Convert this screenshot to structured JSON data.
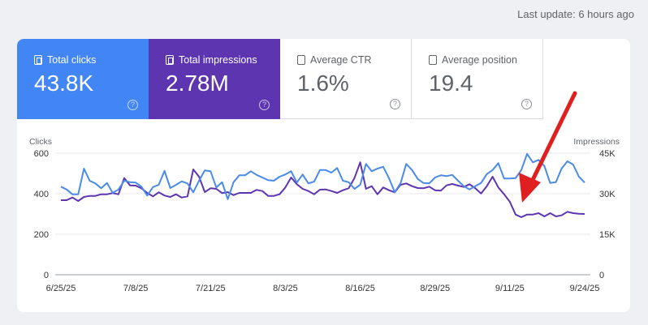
{
  "header": {
    "last_update": "Last update: 6 hours ago"
  },
  "metrics": [
    {
      "label": "Total clicks",
      "value": "43.8K",
      "selected": true,
      "color": "#4285f4"
    },
    {
      "label": "Total impressions",
      "value": "2.78M",
      "selected": true,
      "color": "#5e35b1"
    },
    {
      "label": "Average CTR",
      "value": "1.6%",
      "selected": false
    },
    {
      "label": "Average position",
      "value": "19.4",
      "selected": false
    }
  ],
  "help_glyph": "?",
  "chart_data": {
    "type": "line",
    "x_start": "6/25/25",
    "x_end": "9/24/25",
    "x_tick_labels": [
      "6/25/25",
      "7/8/25",
      "7/21/25",
      "8/3/25",
      "8/16/25",
      "8/29/25",
      "9/11/25",
      "9/24/25"
    ],
    "left_axis": {
      "label": "Clicks",
      "ticks": [
        "600",
        "400",
        "200",
        "0"
      ],
      "range": [
        0,
        600
      ]
    },
    "right_axis": {
      "label": "Impressions",
      "ticks": [
        "45K",
        "30K",
        "15K",
        "0"
      ],
      "range": [
        0,
        45000
      ]
    },
    "grid": true,
    "series": [
      {
        "axis": "left",
        "color": "#4a8ae8",
        "values": [
          435,
          421,
          397,
          397,
          524,
          464,
          451,
          427,
          453,
          404,
          421,
          464,
          457,
          455,
          435,
          391,
          433,
          444,
          513,
          428,
          444,
          461,
          451,
          407,
          464,
          515,
          511,
          431,
          457,
          373,
          457,
          491,
          491,
          511,
          493,
          480,
          467,
          464,
          484,
          495,
          511,
          455,
          495,
          451,
          460,
          517,
          517,
          504,
          527,
          464,
          457,
          424,
          444,
          547,
          511,
          524,
          533,
          477,
          408,
          451,
          547,
          517,
          473,
          453,
          451,
          480,
          491,
          487,
          493,
          464,
          437,
          421,
          437,
          453,
          497,
          517,
          551,
          475,
          475,
          477,
          517,
          597,
          555,
          567,
          537,
          453,
          457,
          524,
          560,
          544,
          484,
          455
        ]
      },
      {
        "axis": "right",
        "color": "#5e35b1",
        "values": [
          27600,
          27600,
          28600,
          27300,
          28800,
          29200,
          29200,
          29800,
          29800,
          30200,
          29800,
          35800,
          33100,
          33000,
          32000,
          30300,
          29000,
          30500,
          29300,
          28800,
          29800,
          28600,
          29000,
          39000,
          36300,
          30600,
          32000,
          31800,
          30200,
          30600,
          29500,
          30300,
          30300,
          30300,
          31400,
          31000,
          29200,
          29200,
          29800,
          32300,
          36000,
          33500,
          31800,
          31000,
          29800,
          31500,
          31600,
          31000,
          30300,
          31300,
          32000,
          35800,
          41600,
          31800,
          32800,
          29800,
          32300,
          31300,
          30500,
          33300,
          33800,
          32800,
          32100,
          32000,
          32600,
          31300,
          31100,
          33100,
          33600,
          33000,
          32500,
          33500,
          32000,
          30100,
          32800,
          36300,
          32300,
          29800,
          27000,
          22300,
          21300,
          22300,
          22300,
          22800,
          21600,
          22800,
          21600,
          22000,
          23300,
          22800,
          22600,
          22500
        ]
      }
    ],
    "annotation": {
      "type": "arrow",
      "color": "#e02020"
    }
  }
}
